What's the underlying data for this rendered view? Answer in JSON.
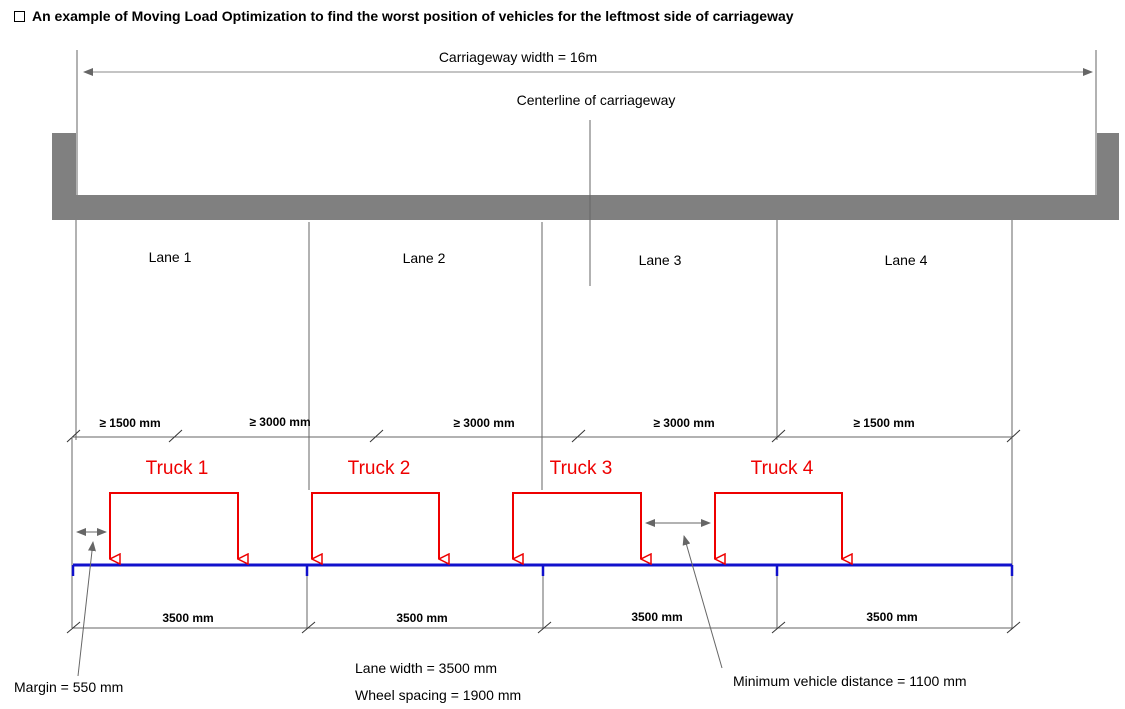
{
  "title": "An example of Moving Load Optimization to find the worst position of vehicles for the leftmost side of carriageway",
  "carriageway_width_label": "Carriageway width = 16m",
  "centerline_label": "Centerline of carriageway",
  "lanes": [
    "Lane 1",
    "Lane 2",
    "Lane 3",
    "Lane 4"
  ],
  "spacing_labels": [
    "≥ 1500 mm",
    "≥ 3000 mm",
    "≥ 3000 mm",
    "≥ 3000 mm",
    "≥ 1500 mm"
  ],
  "trucks": [
    "Truck 1",
    "Truck 2",
    "Truck 3",
    "Truck 4"
  ],
  "lane_width_labels": [
    "3500 mm",
    "3500 mm",
    "3500 mm",
    "3500 mm"
  ],
  "notes": {
    "margin": "Margin = 550 mm",
    "lane_width": "Lane width = 3500 mm",
    "wheel_spacing": "Wheel spacing = 1900 mm",
    "min_vehicle_distance": "Minimum  vehicle distance = 1100 mm"
  },
  "colors": {
    "deck": "#808080",
    "truck": "#ee0000",
    "lane_bar": "#1111cc",
    "dim_line": "#555555"
  }
}
